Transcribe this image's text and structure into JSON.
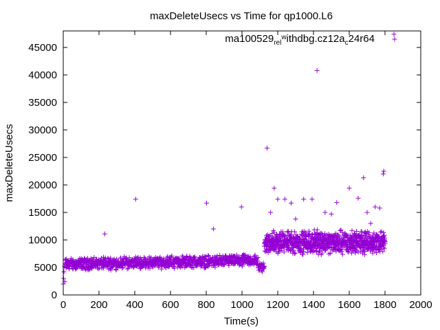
{
  "chart_data": {
    "type": "scatter",
    "title": "maxDeleteUsecs vs Time for qp1000.L6",
    "xlabel": "Time(s)",
    "ylabel": "maxDeleteUsecs",
    "xlim": [
      0,
      2000
    ],
    "ylim": [
      0,
      48000
    ],
    "x_ticks": [
      0,
      200,
      400,
      600,
      800,
      1000,
      1200,
      1400,
      1600,
      1800,
      2000
    ],
    "y_ticks": [
      0,
      5000,
      10000,
      15000,
      20000,
      25000,
      30000,
      35000,
      40000,
      45000
    ],
    "legend": {
      "position": "top-right",
      "label_parts": [
        "ma100529",
        "rel",
        "w",
        "ithdbg.cz12a",
        "c",
        "24r64"
      ]
    },
    "marker": "+",
    "color": "#9400d3",
    "series": [
      {
        "name": "ma100529_rel_withdbg.cz12a_c24r64",
        "points": [
          [
            0,
            2000
          ],
          [
            2,
            3000
          ],
          [
            4,
            4200
          ],
          [
            6,
            5200
          ],
          [
            8,
            2400
          ],
          [
            232,
            11100
          ],
          [
            405,
            17400
          ],
          [
            802,
            16700
          ],
          [
            840,
            12000
          ],
          [
            997,
            16000
          ],
          [
            1140,
            26700
          ],
          [
            1160,
            15000
          ],
          [
            1180,
            19400
          ],
          [
            1200,
            17400
          ],
          [
            1240,
            17400
          ],
          [
            1275,
            16700
          ],
          [
            1300,
            13800
          ],
          [
            1345,
            17400
          ],
          [
            1392,
            17400
          ],
          [
            1420,
            40800
          ],
          [
            1465,
            15000
          ],
          [
            1500,
            14700
          ],
          [
            1530,
            16800
          ],
          [
            1600,
            19400
          ],
          [
            1650,
            17600
          ],
          [
            1680,
            21300
          ],
          [
            1700,
            15000
          ],
          [
            1720,
            13000
          ],
          [
            1745,
            16000
          ],
          [
            1770,
            15800
          ],
          [
            1790,
            22000
          ],
          [
            1793,
            22500
          ],
          [
            1850,
            47400
          ]
        ]
      }
    ]
  }
}
